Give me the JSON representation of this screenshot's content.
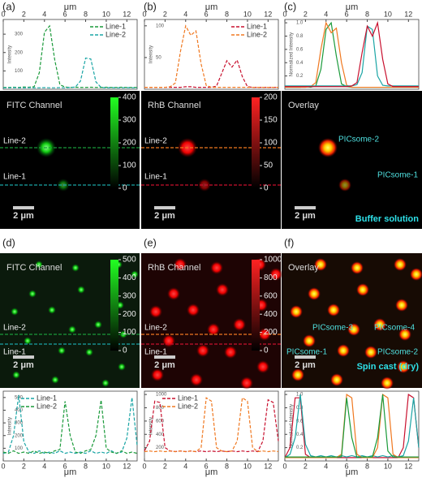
{
  "chart_data": [
    {
      "type": "line",
      "panel": "(a)",
      "xlabel": "μm",
      "ylabel": "Intensity",
      "line_style": "dashed",
      "legend": "upper right",
      "x": [
        0,
        0.5,
        1,
        1.5,
        2,
        2.5,
        3,
        3.5,
        4,
        4.5,
        5,
        5.5,
        6,
        6.5,
        7,
        7.5,
        8,
        8.5,
        9,
        9.5,
        10,
        10.5,
        11,
        11.5,
        12,
        12.5,
        13
      ],
      "xlim": [
        0,
        13
      ],
      "xticks": [
        0,
        2,
        4,
        6,
        8,
        10,
        12
      ],
      "ylim": [
        0,
        380
      ],
      "yticks": [
        100,
        200,
        300
      ],
      "series": [
        {
          "name": "Line-1",
          "color": "#1a9a3a",
          "values": [
            10,
            10,
            11,
            10,
            12,
            11,
            14,
            90,
            310,
            345,
            160,
            25,
            12,
            10,
            11,
            10,
            10,
            11,
            10,
            10,
            11,
            10,
            10,
            11,
            10,
            10,
            10
          ]
        },
        {
          "name": "Line-2",
          "color": "#1aa5a5",
          "values": [
            8,
            8,
            9,
            8,
            8,
            9,
            8,
            8,
            9,
            8,
            8,
            9,
            8,
            10,
            12,
            45,
            170,
            165,
            40,
            10,
            8,
            9,
            8,
            8,
            9,
            8,
            8
          ]
        }
      ]
    },
    {
      "type": "line",
      "panel": "(b)",
      "xlabel": "μm",
      "ylabel": "Intensity",
      "line_style": "dashed",
      "legend": "upper right",
      "x": [
        0,
        0.5,
        1,
        1.5,
        2,
        2.5,
        3,
        3.5,
        4,
        4.5,
        5,
        5.5,
        6,
        6.5,
        7,
        7.5,
        8,
        8.5,
        9,
        9.5,
        10,
        10.5,
        11,
        11.5,
        12,
        12.5,
        13
      ],
      "xlim": [
        0,
        13
      ],
      "xticks": [
        0,
        2,
        4,
        6,
        8,
        10,
        12
      ],
      "ylim": [
        0,
        110
      ],
      "yticks": [
        50,
        100
      ],
      "series": [
        {
          "name": "Line-1",
          "color": "#c8102e",
          "values": [
            3,
            3,
            3,
            3,
            3,
            3,
            3,
            3,
            4,
            4,
            3,
            3,
            3,
            3,
            5,
            25,
            45,
            35,
            46,
            20,
            4,
            3,
            3,
            3,
            3,
            3,
            3
          ]
        },
        {
          "name": "Line-2",
          "color": "#f07820",
          "values": [
            3,
            3,
            3,
            3,
            3,
            4,
            10,
            60,
            100,
            85,
            92,
            40,
            6,
            3,
            3,
            3,
            3,
            3,
            3,
            3,
            3,
            3,
            3,
            3,
            3,
            3,
            3
          ]
        }
      ]
    },
    {
      "type": "line",
      "panel": "(c)",
      "xlabel": "μm",
      "ylabel": "Normalized Intensity",
      "line_style": "solid",
      "x": [
        0,
        0.5,
        1,
        1.5,
        2,
        2.5,
        3,
        3.5,
        4,
        4.5,
        5,
        5.5,
        6,
        6.5,
        7,
        7.5,
        8,
        8.5,
        9,
        9.5,
        10,
        10.5,
        11,
        11.5,
        12,
        12.5,
        13
      ],
      "xlim": [
        0,
        13
      ],
      "xticks": [
        0,
        2,
        4,
        6,
        8,
        10,
        12
      ],
      "ylim": [
        0,
        1.05
      ],
      "yticks": [
        0.2,
        0.4,
        0.6,
        0.8,
        {
          "value": 1,
          "label": "1.0"
        }
      ],
      "series": [
        {
          "color": "#1a9a3a",
          "values": [
            0.03,
            0.03,
            0.03,
            0.03,
            0.04,
            0.03,
            0.05,
            0.3,
            0.9,
            1,
            0.5,
            0.08,
            0.04,
            0.03,
            0.03,
            0.03,
            0.03,
            0.03,
            0.03,
            0.03,
            0.03,
            0.03,
            0.03,
            0.03,
            0.03,
            0.03,
            0.03
          ]
        },
        {
          "color": "#f07820",
          "values": [
            0.03,
            0.03,
            0.03,
            0.03,
            0.03,
            0.04,
            0.1,
            0.6,
            1,
            0.85,
            0.92,
            0.4,
            0.06,
            0.03,
            0.03,
            0.03,
            0.03,
            0.03,
            0.03,
            0.03,
            0.03,
            0.03,
            0.03,
            0.03,
            0.03,
            0.03,
            0.03
          ]
        },
        {
          "color": "#1aa5a5",
          "values": [
            0.05,
            0.05,
            0.05,
            0.05,
            0.05,
            0.05,
            0.05,
            0.05,
            0.05,
            0.05,
            0.05,
            0.05,
            0.05,
            0.05,
            0.07,
            0.25,
            0.95,
            0.9,
            0.2,
            0.06,
            0.05,
            0.05,
            0.05,
            0.05,
            0.05,
            0.05,
            0.05
          ]
        },
        {
          "color": "#c8102e",
          "values": [
            0.04,
            0.04,
            0.04,
            0.04,
            0.04,
            0.04,
            0.04,
            0.04,
            0.04,
            0.04,
            0.04,
            0.04,
            0.04,
            0.05,
            0.1,
            0.55,
            0.95,
            0.8,
            1,
            0.45,
            0.08,
            0.04,
            0.04,
            0.04,
            0.04,
            0.04,
            0.04
          ]
        }
      ]
    },
    {
      "type": "line",
      "panel": "(d)",
      "xlabel": "μm",
      "ylabel": "Intensity",
      "line_style": "dashed",
      "legend": "upper left",
      "x": [
        0,
        0.5,
        1,
        1.5,
        2,
        2.5,
        3,
        3.5,
        4,
        4.5,
        5,
        5.5,
        6,
        6.5,
        7,
        7.5,
        8,
        8.5,
        9,
        9.5,
        10,
        10.5,
        11,
        11.5,
        12,
        12.5,
        13
      ],
      "xlim": [
        0,
        13
      ],
      "xticks": [
        0,
        2,
        4,
        6,
        8,
        10,
        12
      ],
      "ylim": [
        0,
        550
      ],
      "yticks": [
        100,
        200,
        300,
        400,
        500
      ],
      "series": [
        {
          "name": "Line-1",
          "color": "#1aa5a5",
          "values": [
            60,
            70,
            200,
            520,
            150,
            70,
            60,
            80,
            60,
            70,
            60,
            80,
            60,
            70,
            60,
            70,
            60,
            80,
            60,
            70,
            60,
            80,
            60,
            70,
            180,
            500,
            120
          ]
        },
        {
          "name": "Line-2",
          "color": "#1a9a3a",
          "values": [
            70,
            60,
            80,
            60,
            70,
            60,
            80,
            60,
            70,
            60,
            80,
            90,
            470,
            200,
            70,
            60,
            80,
            90,
            200,
            480,
            100,
            70,
            60,
            80,
            60,
            70,
            60
          ]
        }
      ]
    },
    {
      "type": "line",
      "panel": "(e)",
      "xlabel": "μm",
      "ylabel": "Intensity",
      "line_style": "dashed",
      "legend": "upper left",
      "x": [
        0,
        0.5,
        1,
        1.5,
        2,
        2.5,
        3,
        3.5,
        4,
        4.5,
        5,
        5.5,
        6,
        6.5,
        7,
        7.5,
        8,
        8.5,
        9,
        9.5,
        10,
        10.5,
        11,
        11.5,
        12,
        12.5,
        13
      ],
      "xlim": [
        0,
        13
      ],
      "xticks": [
        0,
        2,
        4,
        6,
        8,
        10,
        12
      ],
      "ylim": [
        0,
        1050
      ],
      "yticks": [
        200,
        400,
        600,
        800,
        1000
      ],
      "series": [
        {
          "name": "Line-1",
          "color": "#c8102e",
          "values": [
            150,
            300,
            900,
            880,
            200,
            150,
            140,
            150,
            140,
            150,
            140,
            150,
            140,
            150,
            140,
            150,
            140,
            150,
            140,
            150,
            140,
            150,
            140,
            300,
            920,
            880,
            300
          ]
        },
        {
          "name": "Line-2",
          "color": "#f07820",
          "values": [
            140,
            150,
            140,
            150,
            140,
            150,
            140,
            150,
            140,
            150,
            140,
            200,
            950,
            900,
            200,
            150,
            140,
            150,
            300,
            950,
            900,
            200,
            140,
            150,
            140,
            150,
            140
          ]
        }
      ]
    },
    {
      "type": "line",
      "panel": "(f)",
      "xlabel": "μm",
      "ylabel": "Normalized Intensity",
      "line_style": "solid",
      "x": [
        0,
        0.5,
        1,
        1.5,
        2,
        2.5,
        3,
        3.5,
        4,
        4.5,
        5,
        5.5,
        6,
        6.5,
        7,
        7.5,
        8,
        8.5,
        9,
        9.5,
        10,
        10.5,
        11,
        11.5,
        12,
        12.5,
        13
      ],
      "xlim": [
        0,
        13
      ],
      "xticks": [
        0,
        2,
        4,
        6,
        8,
        10,
        12
      ],
      "ylim": [
        0,
        1.05
      ],
      "yticks": [
        0.2,
        0.4,
        0.6,
        0.8,
        {
          "value": 1,
          "label": "1.0"
        }
      ],
      "series": [
        {
          "color": "#c8102e",
          "values": [
            0.05,
            0.2,
            0.95,
            0.95,
            0.1,
            0.05,
            0.05,
            0.05,
            0.05,
            0.05,
            0.05,
            0.05,
            0.05,
            0.05,
            0.05,
            0.05,
            0.05,
            0.05,
            0.05,
            0.05,
            0.05,
            0.05,
            0.05,
            0.2,
            1,
            0.95,
            0.2
          ]
        },
        {
          "color": "#1aa5a5",
          "values": [
            0.05,
            0.1,
            0.35,
            1,
            0.25,
            0.08,
            0.06,
            0.08,
            0.06,
            0.08,
            0.06,
            0.08,
            0.06,
            0.08,
            0.06,
            0.08,
            0.06,
            0.08,
            0.06,
            0.08,
            0.06,
            0.08,
            0.06,
            0.08,
            0.3,
            0.95,
            0.2
          ]
        },
        {
          "color": "#f07820",
          "values": [
            0.05,
            0.05,
            0.05,
            0.05,
            0.05,
            0.05,
            0.05,
            0.05,
            0.05,
            0.05,
            0.05,
            0.1,
            1,
            0.95,
            0.1,
            0.05,
            0.05,
            0.05,
            0.2,
            1,
            0.95,
            0.1,
            0.05,
            0.05,
            0.05,
            0.05,
            0.05
          ]
        },
        {
          "color": "#1a9a3a",
          "values": [
            0.06,
            0.06,
            0.06,
            0.06,
            0.06,
            0.06,
            0.06,
            0.06,
            0.06,
            0.06,
            0.06,
            0.06,
            0.95,
            0.35,
            0.05,
            0.06,
            0.06,
            0.06,
            0.35,
            1,
            0.15,
            0.06,
            0.06,
            0.06,
            0.06,
            0.06,
            0.06
          ]
        }
      ]
    }
  ],
  "images": [
    {
      "title": "FITC Channel",
      "channel": "green",
      "colorbar_lim": [
        0,
        400
      ],
      "colorbar_ticks": [
        0,
        100,
        200,
        300,
        400
      ],
      "line_labels": [
        "Line-2",
        "Line-1"
      ],
      "scale_bar": "2 μm"
    },
    {
      "title": "RhB Channel",
      "channel": "red",
      "colorbar_lim": [
        0,
        200
      ],
      "colorbar_ticks": [
        0,
        50,
        100,
        150,
        200
      ],
      "line_labels": [
        "Line-2",
        "Line-1"
      ],
      "scale_bar": "2 μm"
    },
    {
      "title": "Overlay",
      "channel": "overlay",
      "annotations": [
        "PICsome-2",
        "PICsome-1"
      ],
      "scale_bar": "2 μm",
      "caption": "Buffer solution"
    },
    {
      "title": "FITC Channel",
      "channel": "green",
      "colorbar_lim": [
        0,
        500
      ],
      "colorbar_ticks": [
        0,
        100,
        200,
        300,
        400,
        500
      ],
      "line_labels": [
        "Line-2",
        "Line-1"
      ],
      "scale_bar": "2 μm"
    },
    {
      "title": "RhB Channel",
      "channel": "red",
      "colorbar_lim": [
        0,
        1000
      ],
      "colorbar_ticks": [
        0,
        200,
        400,
        600,
        800,
        1000
      ],
      "line_labels": [
        "Line-2",
        "Line-1"
      ],
      "scale_bar": "2 μm"
    },
    {
      "title": "Overlay",
      "channel": "overlay",
      "annotations": [
        "PICsome-3",
        "PICsome-4",
        "PICsome-1",
        "PICsome-2"
      ],
      "scale_bar": "2 μm",
      "caption": "Spin cast (dry)"
    }
  ]
}
